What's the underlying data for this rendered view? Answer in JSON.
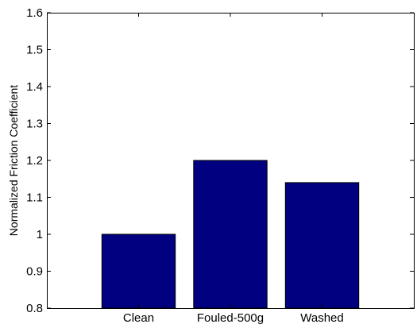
{
  "chart_data": {
    "type": "bar",
    "categories": [
      "Clean",
      "Fouled-500g",
      "Washed"
    ],
    "values": [
      1.0,
      1.2,
      1.14
    ],
    "xlabel": "",
    "ylabel": "Normalized Friction Coefficient",
    "ylim": [
      0.8,
      1.6
    ],
    "yticks": [
      0.8,
      0.9,
      1.0,
      1.1,
      1.2,
      1.3,
      1.4,
      1.5,
      1.6
    ],
    "ytick_labels": [
      "0.8",
      "0.9",
      "1",
      "1.1",
      "1.2",
      "1.3",
      "1.4",
      "1.5",
      "1.6"
    ],
    "bar_color": "#000080",
    "grid": false,
    "legend": "none"
  }
}
